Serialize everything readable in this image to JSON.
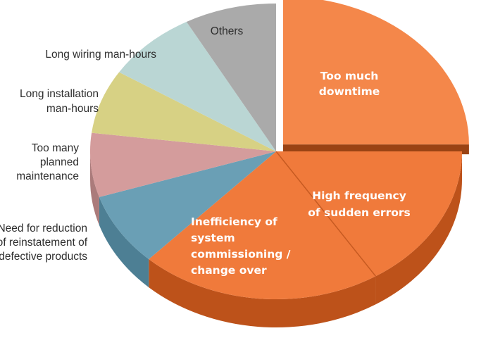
{
  "chart_data": {
    "type": "pie",
    "style": "3d-exploded",
    "title": "",
    "slices": [
      {
        "label": [
          "Too much",
          "downtime"
        ],
        "value": 25,
        "color": "#f4874a",
        "side_color": "#c4561f",
        "label_style": "inside",
        "exploded": true
      },
      {
        "label": [
          "High frequency",
          "of sudden errors"
        ],
        "value": 16,
        "color": "#f07a3b",
        "side_color": "#bd521a",
        "label_style": "inside",
        "exploded": false
      },
      {
        "label": [
          "Inefficiency of",
          "system",
          "commissioning /",
          "change over"
        ],
        "value": 21,
        "color": "#f07a3b",
        "side_color": "#bd521a",
        "label_style": "inside",
        "exploded": false
      },
      {
        "label": [
          "Need for reduction",
          "of reinstatement of",
          "defective products"
        ],
        "value": 8,
        "color": "#6a9fb5",
        "side_color": "#4d7f94",
        "label_style": "outside",
        "exploded": false
      },
      {
        "label": [
          "Too many",
          "planned",
          "maintenance"
        ],
        "value": 7,
        "color": "#d49c9c",
        "side_color": "#ab7b7b",
        "label_style": "outside",
        "exploded": false
      },
      {
        "label": [
          "Long installation",
          "man-hours"
        ],
        "value": 7,
        "color": "#d7d184",
        "side_color": "#afa963",
        "label_style": "outside",
        "exploded": false
      },
      {
        "label": [
          "Long wiring man-hours"
        ],
        "value": 8,
        "color": "#bad6d4",
        "side_color": "#93b0ae",
        "label_style": "outside",
        "exploded": false
      },
      {
        "label": [
          "Others"
        ],
        "value": 8,
        "color": "#aaaaaa",
        "side_color": "#858585",
        "label_style": "outside",
        "exploded": false
      }
    ]
  }
}
